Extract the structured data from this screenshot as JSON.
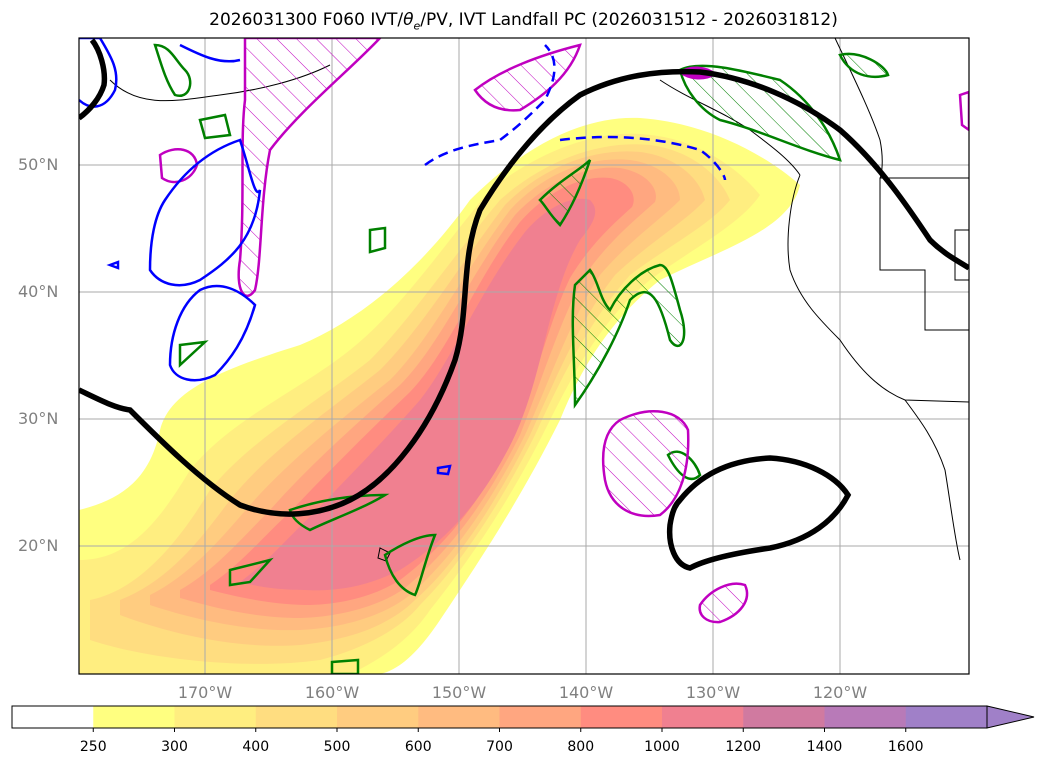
{
  "title": {
    "prefix": "2026031300 F060 IVT/",
    "theta": "θ",
    "theta_sub": "e",
    "suffix": "/PV, IVT Landfall PC (2026031512 - 2026031812)"
  },
  "map": {
    "lat_labels": [
      "50°N",
      "40°N",
      "30°N",
      "20°N"
    ],
    "lon_labels": [
      "170°W",
      "160°W",
      "150°W",
      "140°W",
      "130°W",
      "120°W"
    ],
    "grid_color": "#aaaaaa"
  },
  "colorbar": {
    "levels": [
      "250",
      "300",
      "400",
      "500",
      "600",
      "700",
      "800",
      "1000",
      "1200",
      "1400",
      "1600"
    ],
    "colors": [
      "#ffffff",
      "#ffff80",
      "#ffee80",
      "#ffdd80",
      "#ffcc80",
      "#ffbb80",
      "#ffa680",
      "#ff8c80",
      "#f08090",
      "#d07aa0",
      "#b87ab8",
      "#a080c8"
    ],
    "extend": "max"
  },
  "contour_colors": {
    "theta_e": "#000000",
    "pv_green": "#008000",
    "pv_magenta": "#c000c0",
    "blue": "#0000ff"
  }
}
